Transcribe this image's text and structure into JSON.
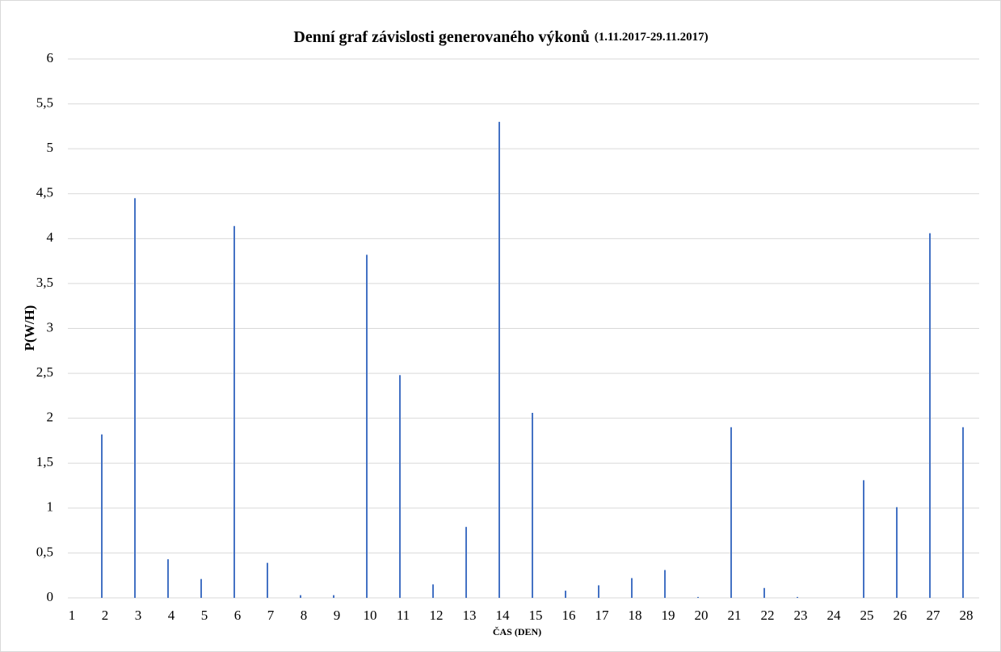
{
  "chart_data": {
    "type": "bar",
    "title": "Denní graf závislosti generovaného výkonů",
    "subtitle": "(1.11.2017-29.11.2017)",
    "x_label": "ČAS (DEN)",
    "y_label": "P(W/H)",
    "categories": [
      "1",
      "2",
      "3",
      "4",
      "5",
      "6",
      "7",
      "8",
      "9",
      "10",
      "11",
      "12",
      "13",
      "14",
      "15",
      "16",
      "17",
      "18",
      "19",
      "20",
      "21",
      "22",
      "23",
      "24",
      "25",
      "26",
      "27",
      "28"
    ],
    "values": [
      0,
      1.82,
      4.45,
      0.43,
      0.21,
      4.14,
      0.39,
      0.03,
      0.03,
      3.82,
      2.48,
      0.15,
      0.79,
      5.3,
      2.06,
      0.08,
      0.14,
      0.22,
      0.31,
      0.01,
      1.9,
      0.11,
      0.01,
      0,
      1.31,
      1.01,
      4.06,
      1.9
    ],
    "color": "#4472c4",
    "ylim": [
      0,
      6
    ],
    "yticks": [
      0,
      {
        "value": 0.5,
        "label": "0,5"
      },
      1,
      {
        "value": 1.5,
        "label": "1,5"
      },
      2,
      {
        "value": 2.5,
        "label": "2,5"
      },
      3,
      {
        "value": 3.5,
        "label": "3,5"
      },
      4,
      {
        "value": 4.5,
        "label": "4,5"
      },
      5,
      {
        "value": 5.5,
        "label": "5,5"
      },
      6
    ],
    "grid": true
  }
}
